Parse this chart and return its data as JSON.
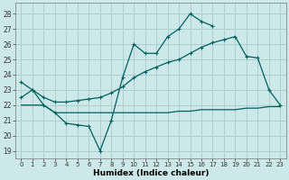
{
  "xlabel": "Humidex (Indice chaleur)",
  "background_color": "#cce8e8",
  "grid_color": "#aacfcf",
  "line_color": "#006060",
  "xlim": [
    -0.5,
    23.5
  ],
  "ylim": [
    18.5,
    28.7
  ],
  "xticks": [
    0,
    1,
    2,
    3,
    4,
    5,
    6,
    7,
    8,
    9,
    10,
    11,
    12,
    13,
    14,
    15,
    16,
    17,
    18,
    19,
    20,
    21,
    22,
    23
  ],
  "yticks": [
    19,
    20,
    21,
    22,
    23,
    24,
    25,
    26,
    27,
    28
  ],
  "line1_x": [
    0,
    1,
    2,
    3,
    4,
    5,
    6,
    7,
    8,
    9,
    10,
    11,
    12,
    13,
    14,
    15,
    16,
    17
  ],
  "line1_y": [
    23.5,
    23.0,
    22.0,
    21.5,
    20.8,
    20.7,
    20.6,
    19.0,
    21.0,
    23.8,
    26.0,
    25.4,
    25.4,
    26.5,
    27.0,
    28.0,
    27.5,
    27.2
  ],
  "line2_x": [
    0,
    2,
    3,
    10,
    11,
    12,
    13,
    14,
    15,
    16,
    17,
    18,
    19,
    20,
    21,
    22,
    23
  ],
  "line2_y": [
    22.0,
    22.0,
    21.5,
    21.5,
    21.5,
    21.5,
    21.5,
    21.6,
    21.6,
    21.7,
    21.7,
    21.7,
    21.7,
    21.8,
    21.8,
    21.9,
    21.9
  ],
  "line3_x": [
    0,
    1,
    2,
    3,
    4,
    5,
    6,
    7,
    8,
    9,
    10,
    11,
    12,
    13,
    14,
    15,
    16,
    17,
    18,
    19,
    20,
    21,
    22,
    23
  ],
  "line3_y": [
    22.5,
    23.0,
    22.5,
    22.2,
    22.2,
    22.3,
    22.4,
    22.5,
    22.8,
    23.2,
    23.8,
    24.2,
    24.5,
    24.8,
    25.0,
    25.4,
    25.8,
    26.1,
    26.3,
    26.5,
    25.2,
    25.1,
    23.0,
    22.0
  ]
}
